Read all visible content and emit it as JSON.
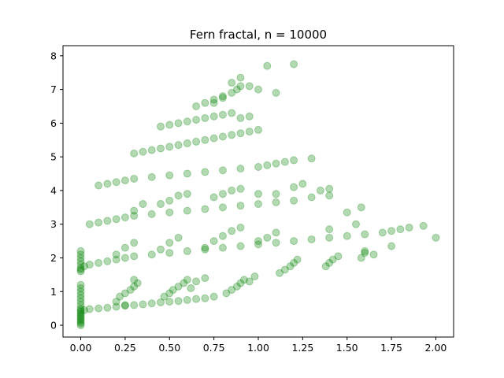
{
  "chart_data": {
    "type": "scatter",
    "title": "Fern fractal, n = 10000",
    "xlabel": "",
    "ylabel": "",
    "xlim": [
      -0.1,
      2.1
    ],
    "ylim": [
      -0.35,
      8.3
    ],
    "xticks": [
      0.0,
      0.25,
      0.5,
      0.75,
      1.0,
      1.25,
      1.5,
      1.75,
      2.0
    ],
    "xtick_labels": [
      "0.00",
      "0.25",
      "0.50",
      "0.75",
      "1.00",
      "1.25",
      "1.50",
      "1.75",
      "2.00"
    ],
    "yticks": [
      0,
      1,
      2,
      3,
      4,
      5,
      6,
      7,
      8
    ],
    "ytick_labels": [
      "0",
      "1",
      "2",
      "3",
      "4",
      "5",
      "6",
      "7",
      "8"
    ],
    "grid": false,
    "marker": {
      "color": "#008000",
      "alpha": 0.3,
      "shape": "circle"
    },
    "series": [
      {
        "x": [
          0.0,
          0.0,
          0.0,
          0.0,
          0.0,
          0.0,
          0.0,
          0.0,
          0.0,
          0.0,
          0.0,
          0.0,
          0.0,
          0.0,
          0.0,
          0.0,
          0.0,
          0.0,
          0.02,
          0.05,
          0.1,
          0.15,
          0.2,
          0.25,
          0.3,
          0.35,
          0.4,
          0.45,
          0.5,
          0.55,
          0.6,
          0.65,
          0.7,
          0.75,
          0.2,
          0.22,
          0.25,
          0.28,
          0.3,
          0.32,
          0.25,
          0.3,
          0.47,
          0.5,
          0.52,
          0.55,
          0.58,
          0.6,
          0.62,
          0.65,
          0.7,
          0.82,
          0.85,
          0.88,
          0.9,
          0.92,
          0.95,
          0.98,
          1.12,
          1.15,
          1.18,
          1.2,
          1.22,
          1.38,
          1.4,
          1.42,
          1.45,
          1.58,
          1.6,
          0.0,
          0.0,
          0.0,
          0.0,
          0.0,
          0.0,
          0.0,
          0.0,
          0.02,
          0.05,
          0.1,
          0.15,
          0.2,
          0.25,
          0.3,
          0.4,
          0.5,
          0.6,
          0.7,
          0.8,
          0.9,
          1.0,
          1.1,
          1.2,
          1.3,
          1.4,
          1.5,
          1.6,
          1.7,
          1.75,
          1.8,
          1.85,
          1.93,
          2.0,
          0.2,
          0.25,
          0.3,
          0.45,
          0.5,
          0.55,
          0.7,
          0.75,
          0.8,
          0.85,
          0.9,
          1.0,
          1.05,
          1.1,
          1.4,
          1.55,
          1.6,
          1.65,
          1.75,
          0.05,
          0.1,
          0.15,
          0.2,
          0.25,
          0.3,
          0.4,
          0.5,
          0.6,
          0.7,
          0.8,
          0.9,
          1.0,
          1.1,
          1.2,
          1.3,
          1.4,
          1.58,
          0.3,
          0.35,
          0.45,
          0.5,
          0.55,
          0.6,
          0.75,
          0.8,
          0.85,
          0.9,
          1.0,
          1.1,
          1.2,
          1.25,
          1.35,
          1.4,
          1.5,
          0.1,
          0.15,
          0.2,
          0.25,
          0.3,
          0.4,
          0.5,
          0.6,
          0.7,
          0.8,
          0.9,
          1.0,
          1.05,
          1.1,
          1.15,
          1.2,
          1.3,
          0.3,
          0.35,
          0.4,
          0.45,
          0.5,
          0.55,
          0.6,
          0.65,
          0.7,
          0.75,
          0.8,
          0.85,
          0.9,
          0.95,
          1.0,
          0.45,
          0.5,
          0.55,
          0.6,
          0.65,
          0.7,
          0.75,
          0.8,
          0.85,
          0.9,
          0.95,
          0.65,
          0.7,
          0.75,
          0.8,
          0.85,
          0.88,
          0.9,
          0.75,
          0.8,
          0.85,
          0.9,
          0.95,
          1.0,
          1.05,
          1.1,
          1.2
        ],
        "y": [
          0.0,
          0.05,
          0.1,
          0.15,
          0.2,
          0.3,
          0.4,
          0.5,
          0.6,
          0.7,
          0.8,
          0.9,
          1.0,
          1.1,
          1.2,
          0.35,
          0.45,
          0.25,
          0.45,
          0.48,
          0.5,
          0.52,
          0.55,
          0.58,
          0.6,
          0.62,
          0.65,
          0.68,
          0.7,
          0.72,
          0.75,
          0.78,
          0.8,
          0.85,
          0.7,
          0.85,
          0.95,
          1.05,
          1.15,
          1.25,
          0.6,
          1.35,
          0.85,
          0.95,
          1.05,
          1.15,
          1.25,
          1.35,
          1.1,
          1.3,
          1.4,
          0.95,
          1.05,
          1.15,
          1.25,
          1.35,
          1.3,
          1.45,
          1.55,
          1.65,
          1.75,
          1.85,
          1.95,
          1.75,
          1.85,
          1.95,
          2.05,
          2.0,
          2.15,
          1.6,
          1.7,
          1.8,
          1.9,
          2.0,
          2.1,
          2.2,
          1.65,
          1.75,
          1.8,
          1.85,
          1.9,
          1.95,
          2.0,
          2.05,
          2.1,
          2.15,
          2.2,
          2.25,
          2.3,
          2.35,
          2.4,
          2.45,
          2.5,
          2.55,
          2.6,
          2.65,
          2.7,
          2.75,
          2.8,
          2.85,
          2.9,
          2.95,
          2.6,
          2.1,
          2.3,
          2.45,
          2.25,
          2.45,
          2.6,
          2.3,
          2.5,
          2.65,
          2.8,
          2.9,
          2.5,
          2.6,
          2.75,
          2.85,
          3.0,
          2.2,
          2.1,
          2.35,
          3.0,
          3.05,
          3.1,
          3.15,
          3.2,
          3.25,
          3.3,
          3.35,
          3.4,
          3.45,
          3.5,
          3.55,
          3.6,
          3.65,
          3.7,
          3.8,
          3.85,
          3.5,
          3.4,
          3.6,
          3.6,
          3.7,
          3.85,
          3.9,
          3.8,
          3.9,
          4.0,
          4.05,
          3.9,
          3.9,
          4.1,
          4.2,
          4.0,
          4.05,
          3.35,
          4.15,
          4.2,
          4.25,
          4.3,
          4.35,
          4.4,
          4.45,
          4.5,
          4.55,
          4.6,
          4.65,
          4.7,
          4.75,
          4.8,
          4.85,
          4.9,
          4.95,
          5.1,
          5.15,
          5.2,
          5.25,
          5.3,
          5.35,
          5.4,
          5.45,
          5.5,
          5.55,
          5.6,
          5.65,
          5.7,
          5.75,
          5.8,
          5.9,
          5.95,
          6.0,
          6.05,
          6.1,
          6.15,
          6.2,
          6.25,
          6.3,
          6.15,
          6.2,
          6.5,
          6.6,
          6.7,
          6.8,
          6.9,
          7.0,
          7.1,
          6.6,
          6.75,
          7.2,
          7.35,
          7.1,
          7.0,
          7.7,
          6.9,
          7.75
        ]
      }
    ]
  }
}
